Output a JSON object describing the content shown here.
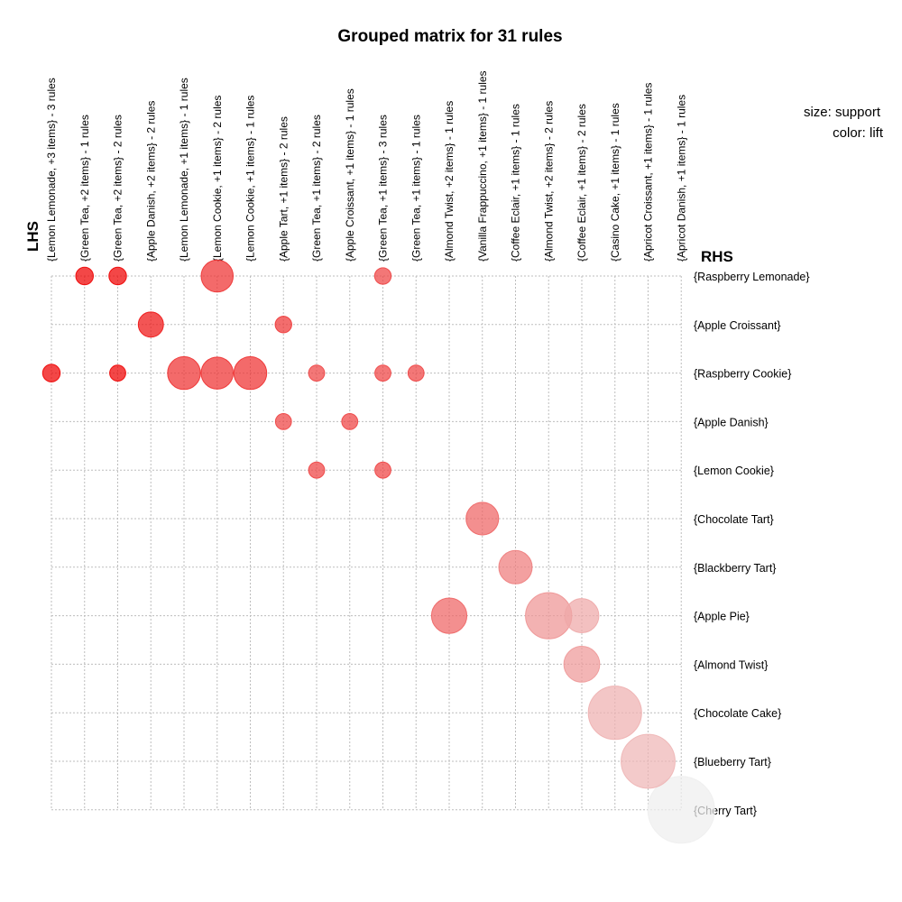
{
  "chart_data": {
    "type": "scatter",
    "title": "Grouped matrix for 31 rules",
    "x_axis_title": "LHS",
    "y_axis_title": "RHS",
    "legend": {
      "size": "size: support",
      "color": "color: lift",
      "position": "top-right"
    },
    "grid": true,
    "lhs_groups": [
      "{Lemon Lemonade, +3 items} - 3 rules",
      "{Green Tea, +2 items} - 1 rules",
      "{Green Tea, +2 items} - 2 rules",
      "{Apple Danish, +2 items} - 2 rules",
      "{Lemon Lemonade, +1 items} - 1 rules",
      "{Lemon Cookie, +1 items} - 2 rules",
      "{Lemon Cookie, +1 items} - 1 rules",
      "{Apple Tart, +1 items} - 2 rules",
      "{Green Tea, +1 items} - 2 rules",
      "{Apple Croissant, +1 items} - 1 rules",
      "{Green Tea, +1 items} - 3 rules",
      "{Green Tea, +1 items} - 1 rules",
      "{Almond Twist, +2 items} - 1 rules",
      "{Vanilla Frappuccino, +1 items} - 1 rules",
      "{Coffee Eclair, +1 items} - 1 rules",
      "{Almond Twist, +2 items} - 2 rules",
      "{Coffee Eclair, +1 items} - 2 rules",
      "{Casino Cake, +1 items} - 1 rules",
      "{Apricot Croissant, +1 items} - 1 rules",
      "{Apricot Danish, +1 items} - 1 rules"
    ],
    "rhs_items": [
      "{Raspberry Lemonade}",
      "{Apple Croissant}",
      "{Raspberry Cookie}",
      "{Apple Danish}",
      "{Lemon Cookie}",
      "{Chocolate Tart}",
      "{Blackberry Tart}",
      "{Apple Pie}",
      "{Almond Twist}",
      "{Chocolate Cake}",
      "{Blueberry Tart}",
      "{Cherry Tart}"
    ],
    "points": [
      {
        "lhs": 1,
        "rhs": 0,
        "support": 0.018,
        "lift": 1.0
      },
      {
        "lhs": 2,
        "rhs": 0,
        "support": 0.018,
        "lift": 1.0
      },
      {
        "lhs": 5,
        "rhs": 0,
        "support": 0.06,
        "lift": 0.8
      },
      {
        "lhs": 10,
        "rhs": 0,
        "support": 0.016,
        "lift": 0.72
      },
      {
        "lhs": 3,
        "rhs": 1,
        "support": 0.037,
        "lift": 0.92
      },
      {
        "lhs": 7,
        "rhs": 1,
        "support": 0.016,
        "lift": 0.78
      },
      {
        "lhs": 0,
        "rhs": 2,
        "support": 0.018,
        "lift": 1.0
      },
      {
        "lhs": 2,
        "rhs": 2,
        "support": 0.015,
        "lift": 1.0
      },
      {
        "lhs": 4,
        "rhs": 2,
        "support": 0.063,
        "lift": 0.8
      },
      {
        "lhs": 5,
        "rhs": 2,
        "support": 0.06,
        "lift": 0.8
      },
      {
        "lhs": 6,
        "rhs": 2,
        "support": 0.063,
        "lift": 0.8
      },
      {
        "lhs": 8,
        "rhs": 2,
        "support": 0.015,
        "lift": 0.72
      },
      {
        "lhs": 10,
        "rhs": 2,
        "support": 0.015,
        "lift": 0.72
      },
      {
        "lhs": 11,
        "rhs": 2,
        "support": 0.015,
        "lift": 0.72
      },
      {
        "lhs": 7,
        "rhs": 3,
        "support": 0.015,
        "lift": 0.72
      },
      {
        "lhs": 9,
        "rhs": 3,
        "support": 0.015,
        "lift": 0.72
      },
      {
        "lhs": 8,
        "rhs": 4,
        "support": 0.015,
        "lift": 0.72
      },
      {
        "lhs": 10,
        "rhs": 4,
        "support": 0.015,
        "lift": 0.72
      },
      {
        "lhs": 13,
        "rhs": 5,
        "support": 0.062,
        "lift": 0.58
      },
      {
        "lhs": 14,
        "rhs": 6,
        "support": 0.065,
        "lift": 0.48
      },
      {
        "lhs": 12,
        "rhs": 7,
        "support": 0.073,
        "lift": 0.58
      },
      {
        "lhs": 15,
        "rhs": 7,
        "support": 0.125,
        "lift": 0.38
      },
      {
        "lhs": 16,
        "rhs": 7,
        "support": 0.068,
        "lift": 0.3
      },
      {
        "lhs": 16,
        "rhs": 8,
        "support": 0.075,
        "lift": 0.36
      },
      {
        "lhs": 17,
        "rhs": 9,
        "support": 0.166,
        "lift": 0.26
      },
      {
        "lhs": 18,
        "rhs": 10,
        "support": 0.17,
        "lift": 0.24
      },
      {
        "lhs": 19,
        "rhs": 11,
        "support": 0.26,
        "lift": 0.0
      }
    ],
    "colors": {
      "high_lift": "#ee0000",
      "low_lift": "#eeeeee",
      "grid": "#bdbdbd"
    }
  }
}
